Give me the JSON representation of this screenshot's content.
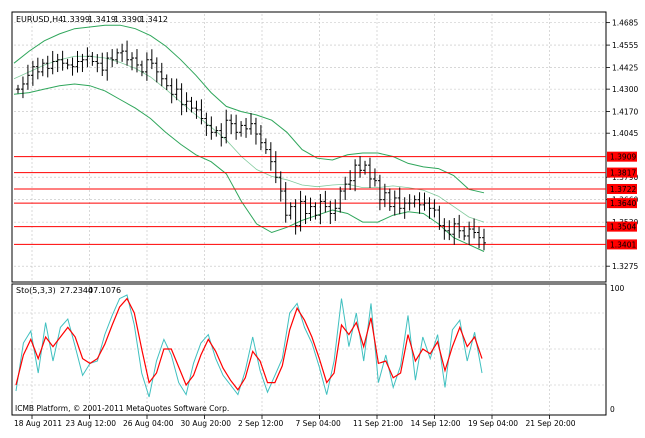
{
  "header": {
    "symbol": "EURUSD,H4",
    "open": "1.3399",
    "high": "1.3419",
    "low": "1.3390",
    "close": "1.3412"
  },
  "indicator": {
    "label": "Sto(5,3,3)",
    "main_value": "27.2340",
    "signal_value": "47.1076",
    "scale_max": "100",
    "scale_min": "0"
  },
  "footer": {
    "copyright": "ICMB Platform, © 2001-2011 MetaQuotes Software Corp."
  },
  "price_axis": {
    "ticks": [
      "1.4685",
      "1.4555",
      "1.4425",
      "1.4300",
      "1.4170",
      "1.4045",
      "1.3790",
      "1.3660",
      "1.3530",
      "1.3275"
    ]
  },
  "levels": [
    {
      "label": "1.3909",
      "value": 1.3909
    },
    {
      "label": "1.3817",
      "value": 1.3817
    },
    {
      "label": "1.3722",
      "value": 1.3722
    },
    {
      "label": "1.3640",
      "value": 1.364
    },
    {
      "label": "1.3504",
      "value": 1.3504
    },
    {
      "label": "1.3401",
      "value": 1.3401
    }
  ],
  "time_axis": {
    "labels": [
      "18 Aug 2011",
      "23 Aug 12:00",
      "26 Aug 04:00",
      "30 Aug 20:00",
      "2 Sep 12:00",
      "7 Sep 04:00",
      "11 Sep 21:00",
      "14 Sep 12:00",
      "19 Sep 04:00",
      "21 Sep 20:00"
    ]
  },
  "colors": {
    "background": "#ffffff",
    "grid": "#c0c0c0",
    "bands": "#2fa65b",
    "levels": "#ff0000",
    "level_label_bg": "#ff0000",
    "level_label_text": "#ffffff",
    "candles": "#000000",
    "stoch_main": "#40c0c0",
    "stoch_signal": "#ff0000",
    "separator": "#808080"
  },
  "chart_data": {
    "type": "line",
    "title": "EURUSD,H4",
    "ylim": [
      1.3195,
      1.4735
    ],
    "price_close": [
      1.43,
      1.433,
      1.438,
      1.443,
      1.44,
      1.445,
      1.442,
      1.446,
      1.447,
      1.445,
      1.444,
      1.443,
      1.446,
      1.447,
      1.449,
      1.446,
      1.445,
      1.441,
      1.448,
      1.447,
      1.451,
      1.452,
      1.447,
      1.448,
      1.444,
      1.44,
      1.447,
      1.445,
      1.44,
      1.436,
      1.432,
      1.427,
      1.43,
      1.421,
      1.423,
      1.419,
      1.418,
      1.413,
      1.409,
      1.405,
      1.406,
      1.402,
      1.412,
      1.41,
      1.405,
      1.409,
      1.407,
      1.41,
      1.404,
      1.399,
      1.395,
      1.388,
      1.379,
      1.371,
      1.357,
      1.362,
      1.351,
      1.365,
      1.358,
      1.362,
      1.357,
      1.365,
      1.362,
      1.358,
      1.361,
      1.371,
      1.375,
      1.377,
      1.386,
      1.383,
      1.386,
      1.378,
      1.377,
      1.366,
      1.37,
      1.362,
      1.367,
      1.361,
      1.364,
      1.364,
      1.366,
      1.363,
      1.364,
      1.361,
      1.36,
      1.351,
      1.348,
      1.346,
      1.352,
      1.348,
      1.345,
      1.349,
      1.347,
      1.344,
      1.341
    ],
    "bands_upper": [
      1.445,
      1.452,
      1.458,
      1.462,
      1.465,
      1.466,
      1.467,
      1.467,
      1.465,
      1.461,
      1.455,
      1.447,
      1.438,
      1.428,
      1.42,
      1.417,
      1.415,
      1.412,
      1.405,
      1.395,
      1.39,
      1.389,
      1.392,
      1.393,
      1.393,
      1.391,
      1.387,
      1.385,
      1.384,
      1.38,
      1.372,
      1.37
    ],
    "bands_lower": [
      1.427,
      1.428,
      1.43,
      1.432,
      1.433,
      1.432,
      1.429,
      1.424,
      1.419,
      1.413,
      1.405,
      1.398,
      1.392,
      1.388,
      1.381,
      1.365,
      1.352,
      1.347,
      1.35,
      1.354,
      1.357,
      1.36,
      1.358,
      1.353,
      1.353,
      1.357,
      1.359,
      1.358,
      1.352,
      1.344,
      1.34,
      1.336
    ],
    "stoch_main": [
      15,
      55,
      65,
      30,
      72,
      40,
      68,
      75,
      52,
      28,
      38,
      40,
      62,
      78,
      92,
      95,
      70,
      30,
      10,
      40,
      58,
      45,
      22,
      12,
      38,
      55,
      62,
      42,
      28,
      20,
      12,
      32,
      60,
      32,
      14,
      28,
      42,
      80,
      88,
      68,
      55,
      35,
      12,
      40,
      92,
      52,
      80,
      40,
      88,
      22,
      45,
      18,
      36,
      78,
      24,
      60,
      42,
      62,
      18,
      66,
      74,
      40,
      64,
      30
    ],
    "stoch_signal": [
      20,
      45,
      58,
      42,
      60,
      52,
      60,
      68,
      60,
      42,
      38,
      42,
      54,
      70,
      85,
      92,
      80,
      50,
      22,
      30,
      50,
      50,
      35,
      20,
      28,
      45,
      58,
      48,
      34,
      24,
      16,
      26,
      48,
      40,
      22,
      22,
      36,
      66,
      84,
      74,
      60,
      42,
      22,
      30,
      70,
      62,
      72,
      52,
      76,
      38,
      40,
      26,
      30,
      62,
      40,
      50,
      46,
      56,
      32,
      52,
      68,
      52,
      60,
      42
    ]
  }
}
